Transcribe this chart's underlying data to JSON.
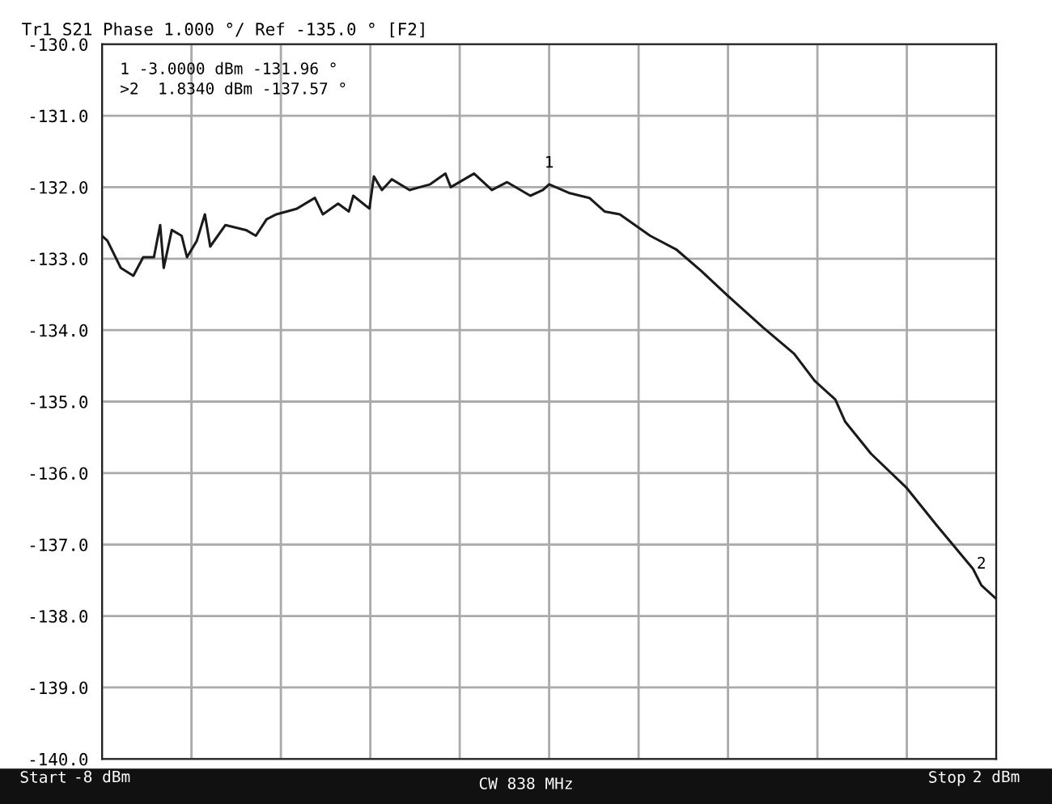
{
  "chart_data": {
    "type": "line",
    "title": "Tr1 S21 Phase 1.000 °/ Ref -135.0 ° [F2]",
    "xlim": [
      -8,
      2
    ],
    "xticks": [
      {
        "value": -8,
        "label": "-8 dBm"
      },
      {
        "value": -7,
        "label": null
      },
      {
        "value": -6,
        "label": null
      },
      {
        "value": -5,
        "label": null
      },
      {
        "value": -4,
        "label": null
      },
      {
        "value": -3,
        "label": null
      },
      {
        "value": -2,
        "label": null
      },
      {
        "value": -1,
        "label": null
      },
      {
        "value": 0,
        "label": null
      },
      {
        "value": 1,
        "label": null
      },
      {
        "value": 2,
        "label": "2 dBm"
      }
    ],
    "ylim": [
      -140,
      -130
    ],
    "yticks": [
      {
        "value": -130,
        "label": "-130.0"
      },
      {
        "value": -131,
        "label": "-131.0"
      },
      {
        "value": -132,
        "label": "-132.0"
      },
      {
        "value": -133,
        "label": "-133.0"
      },
      {
        "value": -134,
        "label": "-134.0"
      },
      {
        "value": -135,
        "label": "-135.0"
      },
      {
        "value": -136,
        "label": "-136.0"
      },
      {
        "value": -137,
        "label": "-137.0"
      },
      {
        "value": -138,
        "label": "-138.0"
      },
      {
        "value": -139,
        "label": "-139.0"
      },
      {
        "value": -140,
        "label": "-140.0"
      }
    ],
    "grid": true,
    "series": [
      {
        "color": "#1a1a1a",
        "x": [
          -8,
          -7.94,
          -7.79,
          -7.65,
          -7.54,
          -7.42,
          -7.35,
          -7.31,
          -7.22,
          -7.11,
          -7.05,
          -6.94,
          -6.85,
          -6.79,
          -6.62,
          -6.39,
          -6.28,
          -6.16,
          -6.05,
          -5.82,
          -5.62,
          -5.53,
          -5.36,
          -5.24,
          -5.19,
          -5.01,
          -4.96,
          -4.87,
          -4.76,
          -4.56,
          -4.33,
          -4.16,
          -4.1,
          -3.84,
          -3.64,
          -3.47,
          -3.21,
          -3.07,
          -3.0,
          -2.78,
          -2.55,
          -2.38,
          -2.21,
          -2.04,
          -1.87,
          -1.58,
          -1.3,
          -1.01,
          -0.61,
          -0.26,
          -0.03,
          0.2,
          0.31,
          0.6,
          1.0,
          1.34,
          1.74,
          1.834,
          2.0
        ],
        "values": [
          -132.68,
          -132.75,
          -133.13,
          -133.24,
          -132.98,
          -132.98,
          -132.53,
          -133.13,
          -132.6,
          -132.68,
          -132.98,
          -132.75,
          -132.38,
          -132.83,
          -132.53,
          -132.6,
          -132.68,
          -132.45,
          -132.38,
          -132.3,
          -132.15,
          -132.38,
          -132.23,
          -132.34,
          -132.12,
          -132.3,
          -131.85,
          -132.04,
          -131.89,
          -132.04,
          -131.96,
          -131.81,
          -132.0,
          -131.81,
          -132.04,
          -131.93,
          -132.12,
          -132.04,
          -131.96,
          -132.08,
          -132.15,
          -132.34,
          -132.38,
          -132.53,
          -132.68,
          -132.87,
          -133.17,
          -133.51,
          -133.96,
          -134.33,
          -134.71,
          -134.97,
          -135.28,
          -135.73,
          -136.21,
          -136.74,
          -137.34,
          -137.57,
          -137.76
        ]
      }
    ],
    "annotations": [
      "1 -3.0000 dBm -131.96 °",
      ">2  1.8340 dBm -137.57 °",
      {
        "text": "1",
        "x": -3.0,
        "y": -131.96
      },
      {
        "text": "2",
        "x": 1.834,
        "y": -137.57
      },
      "Start",
      "CW 838 MHz",
      "Stop"
    ]
  }
}
